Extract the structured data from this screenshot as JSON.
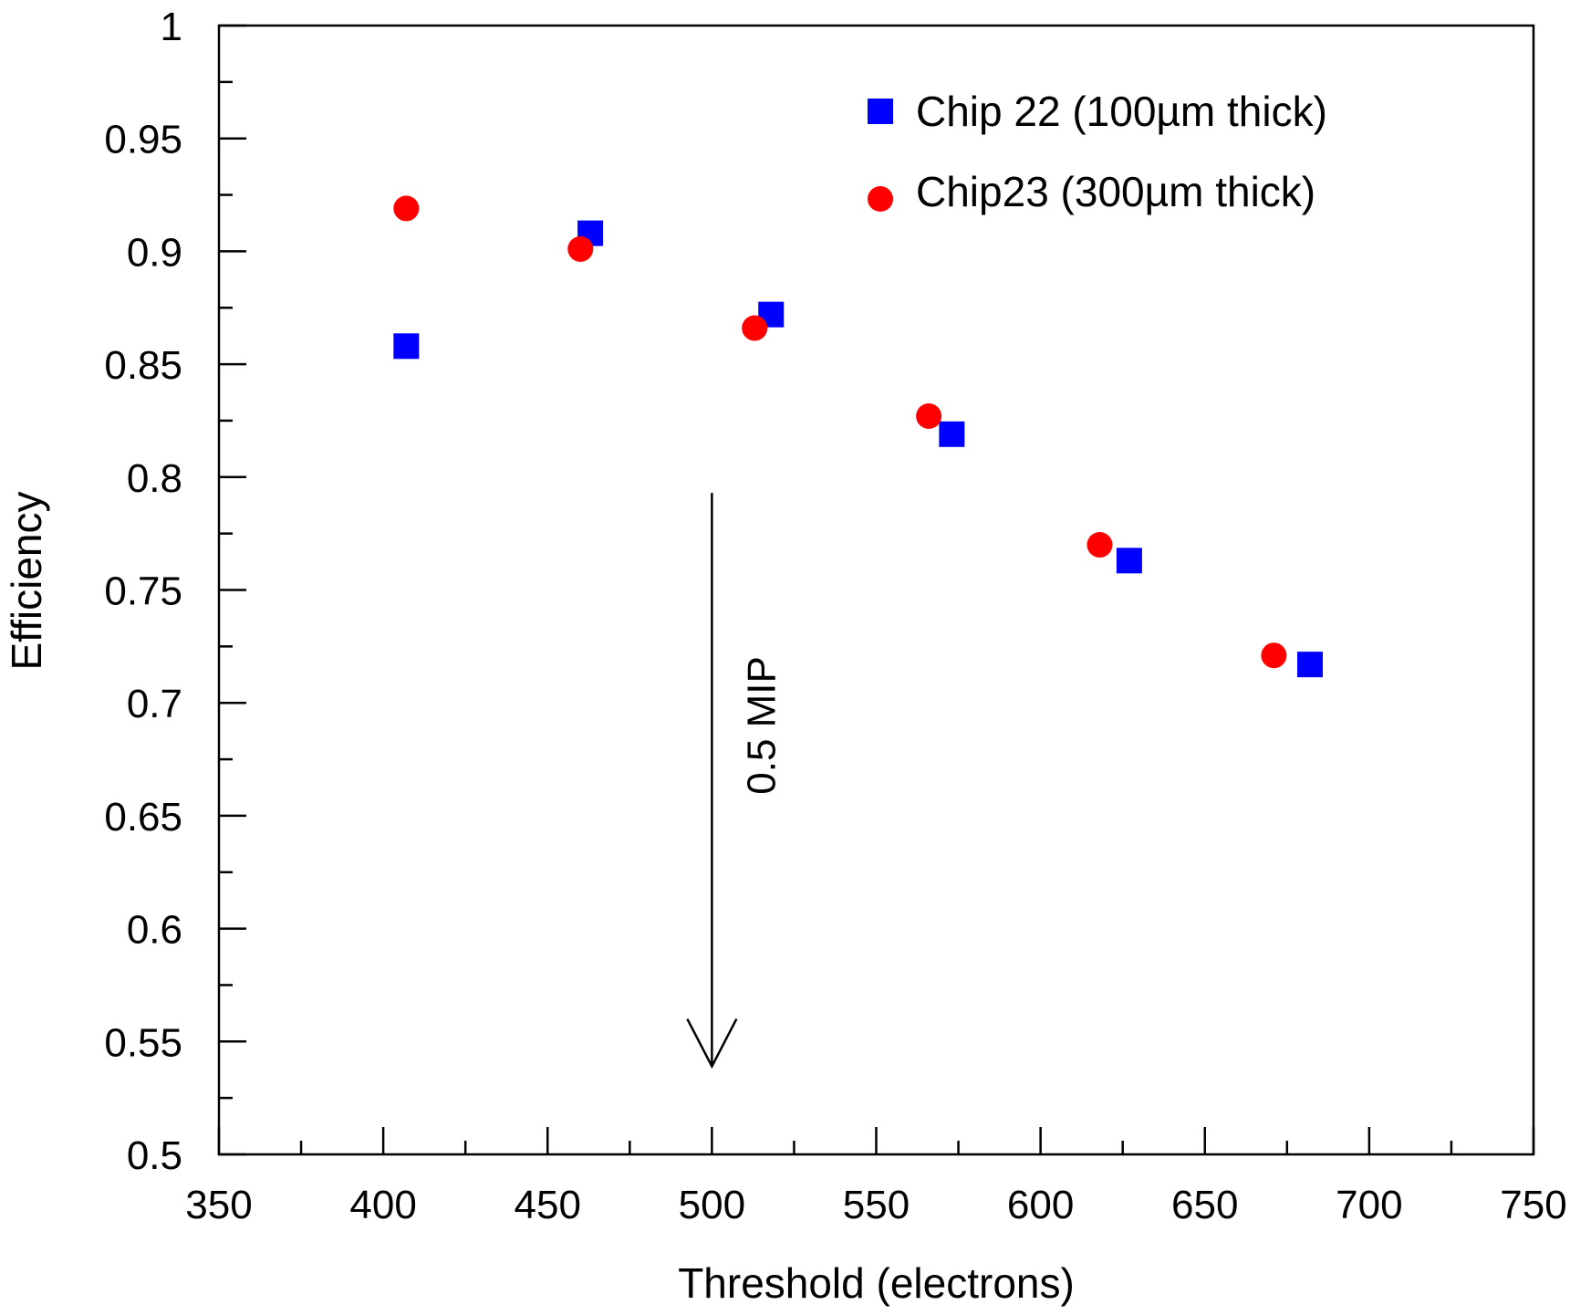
{
  "chart_data": {
    "type": "scatter",
    "xlabel": "Threshold (electrons)",
    "ylabel": "Efficiency",
    "xlim": [
      350,
      750
    ],
    "ylim": [
      0.5,
      1
    ],
    "xticks_major": [
      350,
      400,
      450,
      500,
      550,
      600,
      650,
      700,
      750
    ],
    "xticks_major_labels": [
      "350",
      "400",
      "450",
      "500",
      "550",
      "600",
      "650",
      "700",
      "750"
    ],
    "xticks_minor": [
      375,
      425,
      475,
      525,
      575,
      625,
      675,
      725
    ],
    "yticks_major": [
      0.5,
      0.55,
      0.6,
      0.65,
      0.7,
      0.75,
      0.8,
      0.85,
      0.9,
      0.95,
      1
    ],
    "yticks_major_labels": [
      "0.5",
      "0.55",
      "0.6",
      "0.65",
      "0.7",
      "0.75",
      "0.8",
      "0.85",
      "0.9",
      "0.95",
      "1"
    ],
    "yticks_minor": [
      0.525,
      0.575,
      0.625,
      0.675,
      0.725,
      0.775,
      0.825,
      0.875,
      0.925,
      0.975
    ],
    "grid": false,
    "legend_position": "top-right",
    "series": [
      {
        "name": "Chip 22 (100µm thick)",
        "marker": "square",
        "color": "#0000ff",
        "x": [
          407,
          463,
          518,
          573,
          627,
          682
        ],
        "y": [
          0.858,
          0.908,
          0.872,
          0.819,
          0.763,
          0.717
        ]
      },
      {
        "name": "Chip23 (300µm  thick)",
        "marker": "circle",
        "color": "#ff0000",
        "x": [
          407,
          460,
          513,
          566,
          618,
          671
        ],
        "y": [
          0.919,
          0.901,
          0.866,
          0.827,
          0.77,
          0.721
        ]
      }
    ],
    "annotations": [
      {
        "text": "0.5 MIP",
        "type": "arrow",
        "x": 500,
        "y_start": 0.793,
        "y_end": 0.539
      }
    ]
  }
}
